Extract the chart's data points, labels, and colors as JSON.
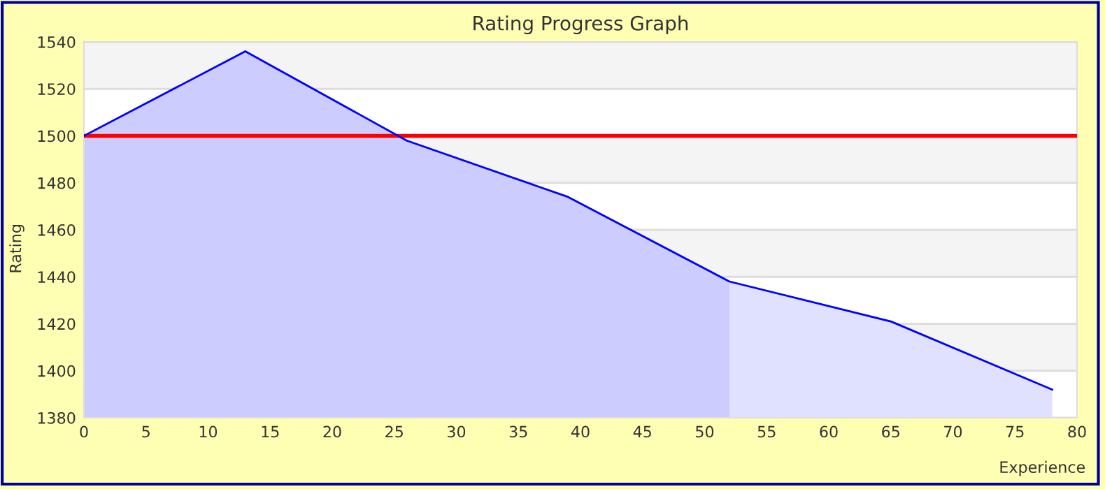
{
  "chart_data": {
    "type": "line",
    "title": "Rating Progress Graph",
    "xlabel": "Experience",
    "ylabel": "Rating",
    "series": [
      {
        "type": "area",
        "color": "#ccccff",
        "x": [
          0,
          13,
          26,
          39,
          52
        ],
        "values": [
          1500,
          1536,
          1498,
          1474,
          1438
        ]
      },
      {
        "type": "area",
        "color": "#e0e0ff",
        "x": [
          52,
          65,
          78
        ],
        "values": [
          1438,
          1421,
          1392
        ]
      },
      {
        "color": "#0000ff",
        "x": [
          0,
          13,
          26,
          39,
          52,
          65,
          78
        ],
        "values": [
          1500,
          1536,
          1498,
          1474,
          1438,
          1421,
          1392
        ]
      }
    ],
    "ref_lines": [
      {
        "axis": "y",
        "value": 1500,
        "color": "#ff0000"
      }
    ],
    "xlim": [
      0,
      80
    ],
    "xticks": [
      0,
      5,
      10,
      15,
      20,
      25,
      30,
      35,
      40,
      45,
      50,
      55,
      60,
      65,
      70,
      75,
      80
    ],
    "ylim": [
      1380,
      1540
    ],
    "yticks": [
      1380,
      1400,
      1420,
      1440,
      1460,
      1480,
      1500,
      1520,
      1540
    ],
    "grid": "y",
    "legend": false,
    "marker": "none",
    "line_style": "solid"
  }
}
